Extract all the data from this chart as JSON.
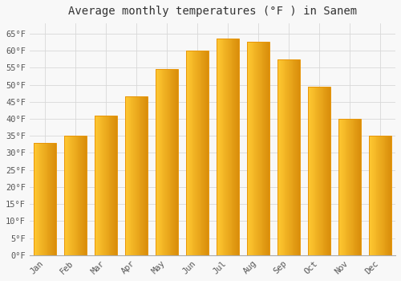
{
  "title": "Average monthly temperatures (°F ) in Sanem",
  "months": [
    "Jan",
    "Feb",
    "Mar",
    "Apr",
    "May",
    "Jun",
    "Jul",
    "Aug",
    "Sep",
    "Oct",
    "Nov",
    "Dec"
  ],
  "values": [
    33,
    35,
    41,
    46.5,
    54.5,
    60,
    63.5,
    62.5,
    57.5,
    49.5,
    40,
    35
  ],
  "bar_color_top": "#FFB300",
  "bar_color_bottom": "#FFD966",
  "bar_edge_color": "#E8960A",
  "background_color": "#f8f8f8",
  "grid_color": "#d8d8d8",
  "ylim": [
    0,
    68
  ],
  "yticks": [
    0,
    5,
    10,
    15,
    20,
    25,
    30,
    35,
    40,
    45,
    50,
    55,
    60,
    65
  ],
  "title_fontsize": 10,
  "tick_fontsize": 7.5,
  "bar_width": 0.72
}
